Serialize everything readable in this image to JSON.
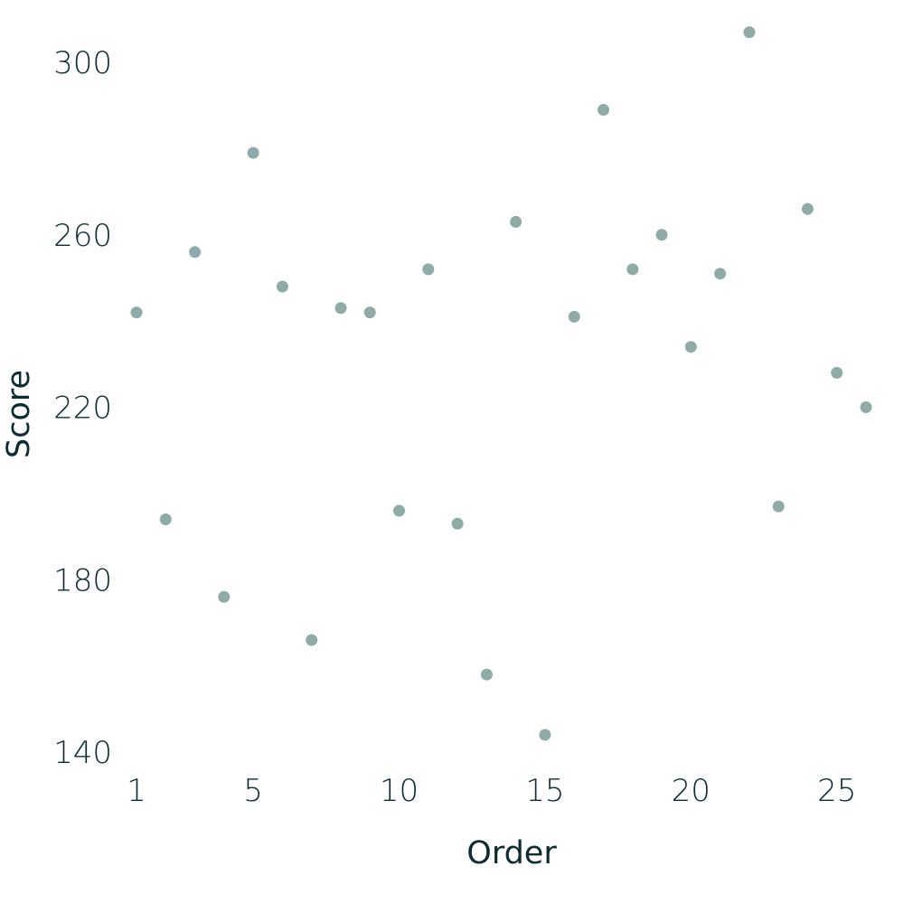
{
  "chart_data": {
    "type": "scatter",
    "xlabel": "Order",
    "ylabel": "Score",
    "xlim": [
      0.1,
      26.3
    ],
    "ylim": [
      138,
      308
    ],
    "x_ticks": [
      1,
      5,
      10,
      15,
      20,
      25
    ],
    "y_ticks": [
      140,
      180,
      220,
      260,
      300
    ],
    "grid": false,
    "legend": "none",
    "point_color": "#8eaba8",
    "text_color": "#0d2b33",
    "points": [
      {
        "x": 1,
        "y": 242
      },
      {
        "x": 2,
        "y": 194
      },
      {
        "x": 3,
        "y": 256
      },
      {
        "x": 4,
        "y": 176
      },
      {
        "x": 5,
        "y": 279
      },
      {
        "x": 6,
        "y": 248
      },
      {
        "x": 7,
        "y": 166
      },
      {
        "x": 8,
        "y": 243
      },
      {
        "x": 9,
        "y": 242
      },
      {
        "x": 10,
        "y": 196
      },
      {
        "x": 11,
        "y": 252
      },
      {
        "x": 12,
        "y": 193
      },
      {
        "x": 13,
        "y": 158
      },
      {
        "x": 14,
        "y": 263
      },
      {
        "x": 15,
        "y": 144
      },
      {
        "x": 16,
        "y": 241
      },
      {
        "x": 17,
        "y": 289
      },
      {
        "x": 18,
        "y": 252
      },
      {
        "x": 19,
        "y": 260
      },
      {
        "x": 20,
        "y": 234
      },
      {
        "x": 21,
        "y": 251
      },
      {
        "x": 22,
        "y": 307
      },
      {
        "x": 23,
        "y": 197
      },
      {
        "x": 24,
        "y": 266
      },
      {
        "x": 25,
        "y": 228
      },
      {
        "x": 26,
        "y": 220
      }
    ]
  }
}
